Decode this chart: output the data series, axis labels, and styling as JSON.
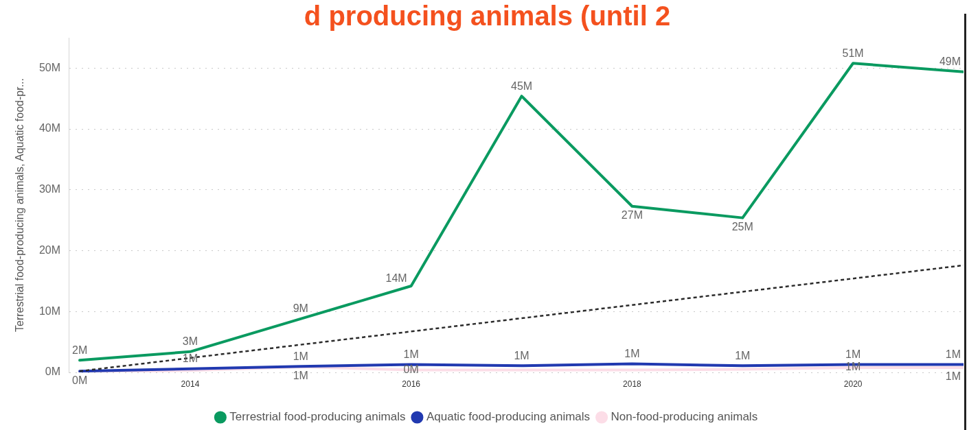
{
  "chart_data": {
    "type": "line",
    "title": "d producing animals (until 2",
    "ylabel": "Terrestrial food-producing animals, Aquatic food-pr...",
    "x": [
      2013,
      2014,
      2015,
      2016,
      2017,
      2018,
      2019,
      2020,
      2021
    ],
    "xlim": [
      2012.9,
      2021
    ],
    "xticks": [
      2014,
      2016,
      2018,
      2020
    ],
    "ylim": [
      0,
      55000000
    ],
    "yticks": [
      {
        "value": 0,
        "label": "0M"
      },
      {
        "value": 10000000,
        "label": "10M"
      },
      {
        "value": 20000000,
        "label": "20M"
      },
      {
        "value": 30000000,
        "label": "30M"
      },
      {
        "value": 40000000,
        "label": "40M"
      },
      {
        "value": 50000000,
        "label": "50M"
      }
    ],
    "grid": "y",
    "legend": "bottom",
    "marker": "none",
    "series": [
      {
        "name": "Terrestrial food-producing animals",
        "color": "#0a9a60",
        "values": [
          2000000,
          3400000,
          8800000,
          14200000,
          45400000,
          27300000,
          25400000,
          50800000,
          49400000
        ],
        "value_labels": [
          "2M",
          "3M",
          "9M",
          "14M",
          "45M",
          "27M",
          "25M",
          "51M",
          "49M"
        ]
      },
      {
        "name": "Aquatic food-producing animals",
        "color": "#2139b0",
        "values": [
          200000,
          600000,
          1000000,
          1300000,
          1100000,
          1400000,
          1100000,
          1300000,
          1300000
        ],
        "value_labels": [
          "0M",
          "1M",
          "1M",
          "1M",
          "1M",
          "1M",
          "1M",
          "1M",
          "1M"
        ]
      },
      {
        "name": "Non-food-producing animals",
        "color": "#fcdde7",
        "values": [
          100000,
          300000,
          900000,
          400000,
          400000,
          400000,
          500000,
          800000,
          800000
        ],
        "value_labels": [
          null,
          null,
          "1M",
          "0M",
          null,
          null,
          null,
          "1M",
          "1M"
        ]
      },
      {
        "type": "line",
        "x": [
          2013,
          2021
        ],
        "values": [
          200000,
          17600000
        ],
        "color": "#2b2b2b",
        "line_style": "dashed"
      }
    ]
  }
}
